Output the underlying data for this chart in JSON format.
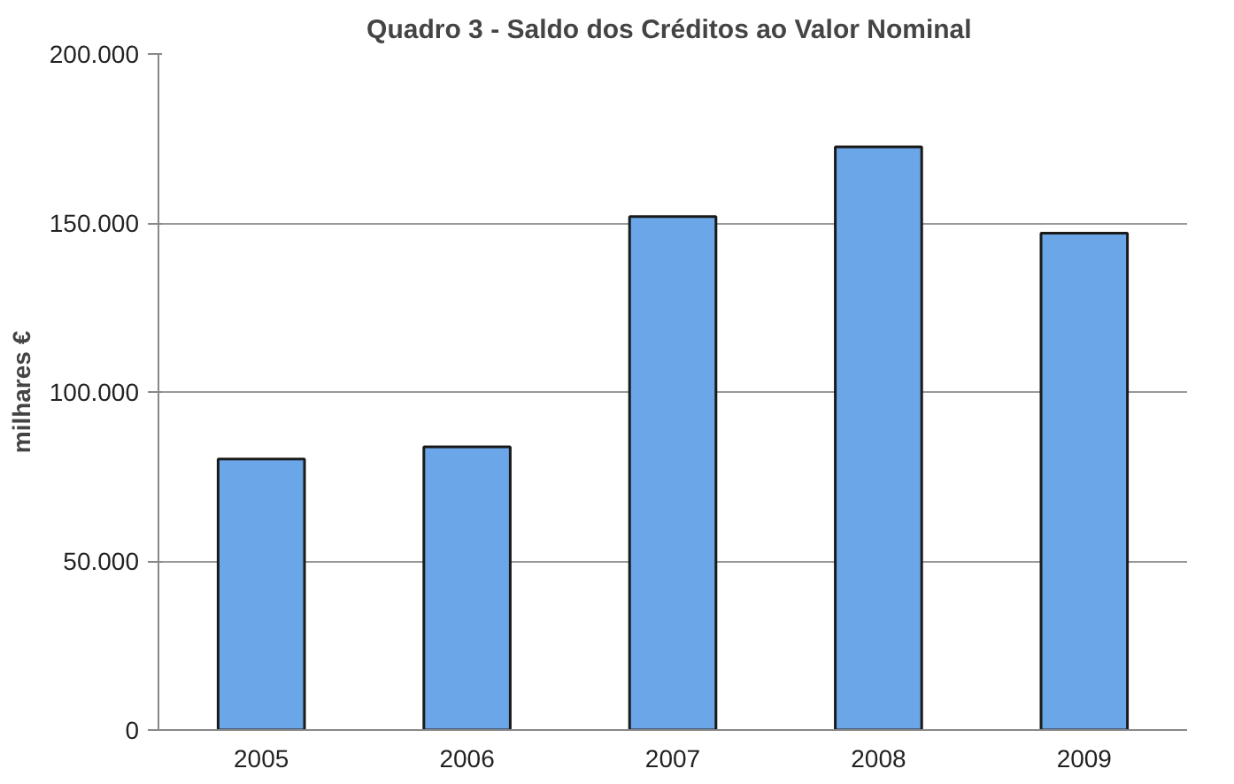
{
  "chart_data": {
    "type": "bar",
    "title": "Quadro 3 - Saldo dos Créditos ao Valor  Nominal",
    "ylabel": "milhares €",
    "categories": [
      "2005",
      "2006",
      "2007",
      "2008",
      "2009"
    ],
    "values": [
      80200,
      83800,
      151900,
      172500,
      147000
    ],
    "color": "#6aa6e8",
    "ylim": [
      0,
      200000
    ],
    "yticks": [
      {
        "value": 0,
        "label": "0"
      },
      {
        "value": 50000,
        "label": "50.000"
      },
      {
        "value": 100000,
        "label": "100.000"
      },
      {
        "value": 150000,
        "label": "150.000"
      },
      {
        "value": 200000,
        "label": "200.000"
      }
    ],
    "grid": "y"
  }
}
